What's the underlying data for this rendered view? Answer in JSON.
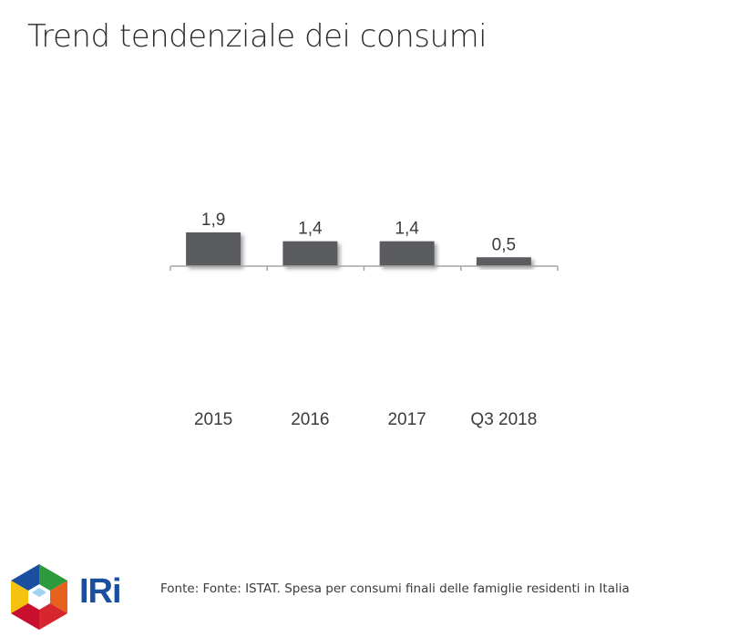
{
  "title": "Trend tendenziale dei consumi",
  "colors": {
    "bar": "#5a5b5f",
    "bar_shadow": "#c8c8c8",
    "axis": "#a6a6a6",
    "text": "#3b3b3b"
  },
  "chart_data": {
    "type": "bar",
    "categories": [
      "2015",
      "2016",
      "2017",
      "Q3 2018"
    ],
    "values": [
      1.9,
      1.4,
      1.4,
      0.5
    ],
    "data_labels": [
      "1,9",
      "1,4",
      "1,4",
      "0,5"
    ],
    "title": "",
    "xlabel": "",
    "ylabel": "",
    "ylim": [
      0,
      2
    ],
    "grid": false,
    "legend": "none"
  },
  "footer": {
    "source": "Fonte: Fonte: ISTAT.  Spesa per consumi finali delle famiglie residenti in Italia"
  },
  "logo": {
    "text": "IRi"
  }
}
